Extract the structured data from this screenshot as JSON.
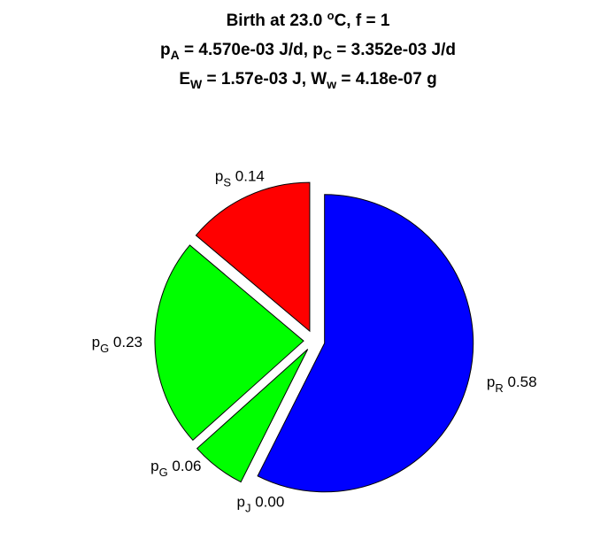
{
  "title": {
    "line1": "Birth at 23.0 °C, f = 1",
    "line2": "pA = 4.570e-03 J/d, pC = 3.352e-03 J/d",
    "line3": "EW = 1.57e-03 J, Ww = 4.18e-07 g",
    "line1_parts": {
      "prefix": "Birth at 23.0 ",
      "sup": "o",
      "suffix": "C, f = 1"
    },
    "line2_parts": {
      "p1": "p",
      "s1": "A",
      "m1": " = 4.570e-03 J/d, p",
      "s2": "C",
      "e1": " = 3.352e-03 J/d"
    },
    "line3_parts": {
      "p1": "E",
      "s1": "W",
      "m1": " = 1.57e-03 J, W",
      "s2": "w",
      "e1": " = 4.18e-07 g"
    }
  },
  "chart_data": {
    "type": "pie",
    "start_angle_deg": 0,
    "direction": "clockwise",
    "exploded": true,
    "slices": [
      {
        "name": "pR",
        "base": "p",
        "sub": "R",
        "value": 0.58,
        "color": "#0000ff"
      },
      {
        "name": "pJ",
        "base": "p",
        "sub": "J",
        "value": 0.0,
        "color": "#ffff00"
      },
      {
        "name": "pG",
        "base": "p",
        "sub": "G",
        "value": 0.06,
        "color": "#00ff00"
      },
      {
        "name": "pG",
        "base": "p",
        "sub": "G",
        "value": 0.23,
        "color": "#00ff00"
      },
      {
        "name": "pS",
        "base": "p",
        "sub": "S",
        "value": 0.14,
        "color": "#ff0000"
      }
    ]
  }
}
